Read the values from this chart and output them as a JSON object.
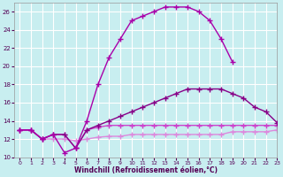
{
  "bg_color": "#c8eef0",
  "grid_color": "#b0d8dc",
  "xlabel": "Windchill (Refroidissement éolien,°C)",
  "xmin": -0.5,
  "xmax": 23,
  "ymin": 10,
  "ymax": 27,
  "yticks": [
    10,
    12,
    14,
    16,
    18,
    20,
    22,
    24,
    26
  ],
  "xticks": [
    0,
    1,
    2,
    3,
    4,
    5,
    6,
    7,
    8,
    9,
    10,
    11,
    12,
    13,
    14,
    15,
    16,
    17,
    18,
    19,
    20,
    21,
    22,
    23
  ],
  "line1_x": [
    0,
    1,
    2,
    3,
    4,
    5,
    6,
    7,
    8,
    9,
    10,
    11,
    12,
    13,
    14,
    15,
    16,
    17,
    18,
    19
  ],
  "line1_y": [
    13,
    13,
    12,
    12.5,
    10.5,
    11,
    14,
    18,
    21,
    23,
    25,
    25.5,
    26,
    26.5,
    26.5,
    26.5,
    26,
    25,
    23,
    20.5
  ],
  "line1_color": "#aa00aa",
  "line2_x": [
    0,
    1,
    2,
    3,
    4,
    5,
    6,
    7,
    8,
    9,
    10,
    11,
    12,
    13,
    14,
    15,
    16,
    17,
    18,
    19,
    20,
    21,
    22,
    23
  ],
  "line2_y": [
    13,
    13,
    12,
    12.5,
    12.5,
    11,
    13,
    13.5,
    14,
    14.5,
    15,
    15.5,
    16,
    16.5,
    17,
    17.5,
    17.5,
    17.5,
    17.5,
    17,
    16.5,
    15.5,
    15,
    13.8
  ],
  "line2_color": "#880088",
  "line3_x": [
    0,
    1,
    2,
    3,
    4,
    5,
    6,
    7,
    8,
    9,
    10,
    11,
    12,
    13,
    14,
    15,
    16,
    17,
    18,
    19,
    20,
    21,
    22,
    23
  ],
  "line3_y": [
    13,
    13,
    12,
    12.5,
    12.5,
    11,
    13,
    13.3,
    13.5,
    13.5,
    13.5,
    13.5,
    13.5,
    13.5,
    13.5,
    13.5,
    13.5,
    13.5,
    13.5,
    13.5,
    13.5,
    13.5,
    13.5,
    13.5
  ],
  "line3_color": "#cc44cc",
  "line4_x": [
    0,
    1,
    2,
    3,
    4,
    5,
    6,
    7,
    8,
    9,
    10,
    11,
    12,
    13,
    14,
    15,
    16,
    17,
    18,
    19,
    20,
    21,
    22,
    23
  ],
  "line4_y": [
    13,
    13,
    12,
    12,
    12,
    11.8,
    12,
    12.2,
    12.3,
    12.3,
    12.5,
    12.5,
    12.5,
    12.5,
    12.5,
    12.5,
    12.5,
    12.5,
    12.5,
    12.8,
    12.8,
    12.8,
    12.8,
    13
  ],
  "line4_color": "#dd88dd",
  "marker": "+",
  "markersize": 4,
  "linewidth": 1.0,
  "tick_color": "#550055",
  "xlabel_color": "#550055"
}
